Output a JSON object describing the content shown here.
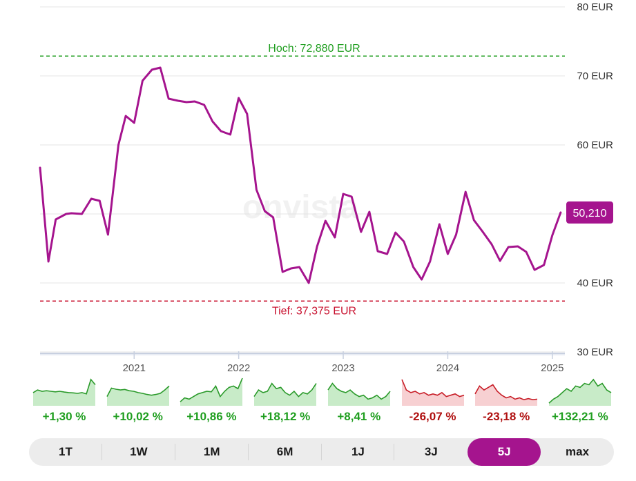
{
  "colors": {
    "line": "#a5148e",
    "high": "#1f9e1f",
    "low": "#c8102e",
    "positive": "#1f9e1f",
    "negative": "#b01010",
    "active_period": "#a5148e"
  },
  "watermark": "onvista",
  "badge": "50,210",
  "chart_data": {
    "type": "line",
    "ylim": [
      28,
      81
    ],
    "y_ticks": [
      30,
      40,
      50,
      60,
      70,
      80
    ],
    "y_tick_labels": [
      "30 EUR",
      "40 EUR",
      "50 EUR",
      "60 EUR",
      "70 EUR",
      "80 EUR"
    ],
    "x_ticks": [
      "2021",
      "2022",
      "2023",
      "2024",
      "2025"
    ],
    "x_tick_pos": [
      2021.0,
      2022.0,
      2023.0,
      2024.0,
      2025.0
    ],
    "xlim": [
      2020.1,
      2025.12
    ],
    "high": {
      "value": 72.88,
      "label": "Hoch: 72,880 EUR"
    },
    "low": {
      "value": 37.375,
      "label": "Tief: 37,375 EUR"
    },
    "last_value": 50.21,
    "series": [
      {
        "x": [
          2020.1,
          2020.18,
          2020.25,
          2020.35,
          2020.4,
          2020.5,
          2020.59,
          2020.67,
          2020.75,
          2020.85,
          2020.92,
          2021.0,
          2021.08,
          2021.17,
          2021.25,
          2021.33,
          2021.42,
          2021.5,
          2021.58,
          2021.67,
          2021.75,
          2021.83,
          2021.92,
          2022.0,
          2022.08,
          2022.17,
          2022.25,
          2022.33,
          2022.42,
          2022.5,
          2022.58,
          2022.67,
          2022.75,
          2022.83,
          2022.92,
          2023.0,
          2023.08,
          2023.17,
          2023.25,
          2023.33,
          2023.42,
          2023.5,
          2023.58,
          2023.67,
          2023.75,
          2023.83,
          2023.92,
          2024.0,
          2024.08,
          2024.17,
          2024.25,
          2024.33,
          2024.42,
          2024.5,
          2024.58,
          2024.67,
          2024.75,
          2024.83,
          2024.92,
          2025.0,
          2025.08
        ],
        "y": [
          56.7,
          43.1,
          49.2,
          50.0,
          50.1,
          50.0,
          52.2,
          51.9,
          47.0,
          60.0,
          64.2,
          63.2,
          69.3,
          70.9,
          71.2,
          66.7,
          66.4,
          66.2,
          66.3,
          65.8,
          63.4,
          62.0,
          61.5,
          66.8,
          64.5,
          53.5,
          50.4,
          49.5,
          41.6,
          42.1,
          42.3,
          40.0,
          45.3,
          49.0,
          46.6,
          52.9,
          52.5,
          47.4,
          50.3,
          44.6,
          44.2,
          47.3,
          46.0,
          42.3,
          40.5,
          43.1,
          48.5,
          44.2,
          47.0,
          53.2,
          49.1,
          47.5,
          45.6,
          43.2,
          45.2,
          45.3,
          44.5,
          41.9,
          42.6,
          46.9,
          50.21
        ]
      }
    ]
  },
  "minis": [
    {
      "pct": "+1,30 %",
      "trend": "up",
      "points": [
        0.45,
        0.55,
        0.5,
        0.52,
        0.5,
        0.48,
        0.5,
        0.47,
        0.45,
        0.44,
        0.42,
        0.45,
        0.4,
        0.95,
        0.75
      ]
    },
    {
      "pct": "+10,02 %",
      "trend": "up",
      "points": [
        0.3,
        0.62,
        0.58,
        0.55,
        0.57,
        0.52,
        0.5,
        0.45,
        0.42,
        0.38,
        0.35,
        0.38,
        0.42,
        0.55,
        0.7
      ]
    },
    {
      "pct": "+10,86 %",
      "trend": "up",
      "points": [
        0.1,
        0.25,
        0.2,
        0.3,
        0.4,
        0.45,
        0.5,
        0.48,
        0.7,
        0.3,
        0.5,
        0.65,
        0.7,
        0.6,
        1.0
      ]
    },
    {
      "pct": "+18,12 %",
      "trend": "up",
      "points": [
        0.3,
        0.55,
        0.45,
        0.5,
        0.8,
        0.6,
        0.65,
        0.45,
        0.35,
        0.5,
        0.3,
        0.45,
        0.4,
        0.55,
        0.8
      ]
    },
    {
      "pct": "+8,41 %",
      "trend": "up",
      "points": [
        0.55,
        0.8,
        0.6,
        0.5,
        0.45,
        0.55,
        0.4,
        0.3,
        0.35,
        0.2,
        0.25,
        0.35,
        0.2,
        0.3,
        0.5
      ]
    },
    {
      "pct": "-26,07 %",
      "trend": "down",
      "points": [
        0.95,
        0.55,
        0.45,
        0.5,
        0.4,
        0.45,
        0.35,
        0.4,
        0.35,
        0.45,
        0.3,
        0.35,
        0.4,
        0.3,
        0.35
      ]
    },
    {
      "pct": "-23,18 %",
      "trend": "down",
      "points": [
        0.4,
        0.7,
        0.55,
        0.65,
        0.75,
        0.5,
        0.35,
        0.25,
        0.3,
        0.2,
        0.25,
        0.18,
        0.22,
        0.18,
        0.2
      ]
    },
    {
      "pct": "+132,21 %",
      "trend": "up",
      "points": [
        0.05,
        0.2,
        0.3,
        0.45,
        0.6,
        0.5,
        0.7,
        0.65,
        0.8,
        0.75,
        0.95,
        0.7,
        0.8,
        0.55,
        0.45
      ]
    }
  ],
  "periods": [
    "1T",
    "1W",
    "1M",
    "6M",
    "1J",
    "3J",
    "5J",
    "max"
  ],
  "active_period": "5J"
}
